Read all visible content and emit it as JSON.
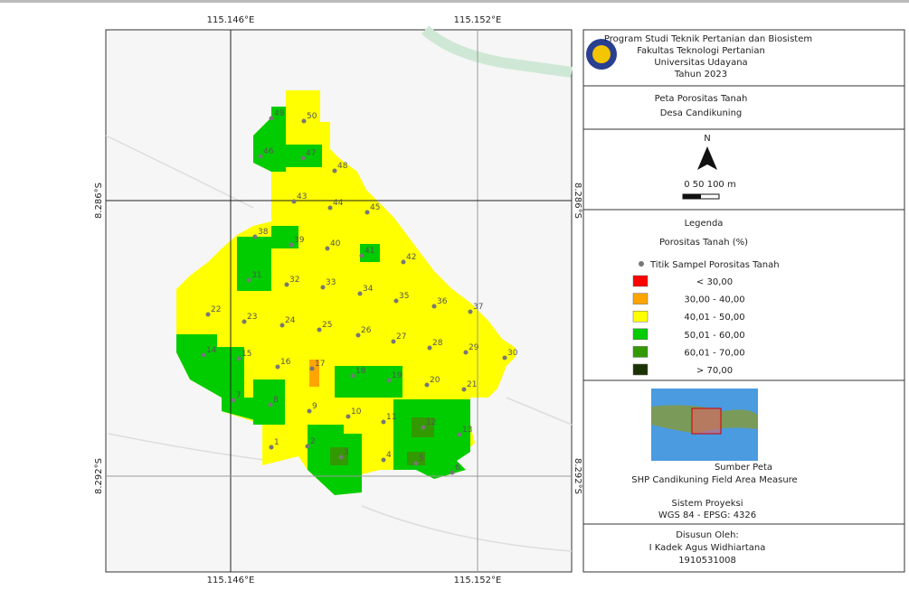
{
  "map": {
    "lon_labels": [
      "115.146°E",
      "115.152°E"
    ],
    "lat_labels": [
      "8.286°S",
      "8.292°S"
    ],
    "sample_points": [
      1,
      2,
      3,
      4,
      5,
      6,
      7,
      8,
      9,
      10,
      11,
      12,
      13,
      14,
      15,
      16,
      17,
      18,
      19,
      20,
      21,
      22,
      23,
      24,
      25,
      26,
      27,
      28,
      29,
      30,
      31,
      32,
      33,
      34,
      35,
      36,
      37,
      38,
      39,
      40,
      41,
      42,
      43,
      44,
      45,
      46,
      47,
      48,
      49,
      50
    ]
  },
  "panel": {
    "institution": [
      "Program Studi Teknik Pertanian dan Biosistem",
      "Fakultas Teknologi Pertanian",
      "Universitas Udayana",
      "Tahun 2023"
    ],
    "title": [
      "Peta Porositas Tanah",
      "Desa Candikuning"
    ],
    "north": "N",
    "scale": "0   50  100 m",
    "legend": {
      "title": "Legenda",
      "subtitle": "Porositas Tanah (%)",
      "point_label": "Titik Sampel Porositas Tanah",
      "classes": [
        {
          "label": "< 30,00",
          "color": "#ff0000"
        },
        {
          "label": "30,00 - 40,00",
          "color": "#ffa500"
        },
        {
          "label": "40,01 - 50,00",
          "color": "#ffff00"
        },
        {
          "label": "50,01 - 60,00",
          "color": "#00cc00"
        },
        {
          "label": "60,01 - 70,00",
          "color": "#339900"
        },
        {
          "label": "> 70,00",
          "color": "#1a3300"
        }
      ]
    },
    "source": {
      "title": "Sumber Peta",
      "text": "SHP Candikuning Field Area Measure"
    },
    "projection": {
      "title": "Sistem Proyeksi",
      "text": "WGS 84 - EPSG: 4326"
    },
    "author": {
      "title": "Disusun Oleh:",
      "name": "I Kadek Agus Widhiartana",
      "id": "1910531008"
    }
  }
}
